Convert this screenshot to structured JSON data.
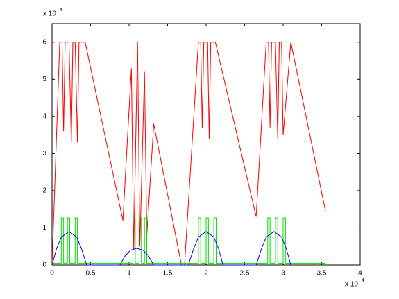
{
  "chart_data": {
    "type": "line",
    "xlim": [
      0,
      4
    ],
    "xticks": [
      0,
      0.5,
      1,
      1.5,
      2,
      2.5,
      3,
      3.5,
      4
    ],
    "ylim": [
      0,
      6.5
    ],
    "yticks": [
      0,
      1,
      2,
      3,
      4,
      5,
      6
    ],
    "x_multiplier": "x 10",
    "x_multiplier_exp": "4",
    "y_multiplier": "x 10",
    "y_multiplier_exp": "4",
    "series": [
      {
        "color": "#ff0000",
        "x": [
          0,
          0.1,
          0.13,
          0.15,
          0.17,
          0.22,
          0.25,
          0.27,
          0.3,
          0.33,
          0.35,
          0.43,
          0.92,
          1.03,
          1.06,
          1.11,
          1.14,
          1.2,
          1.23,
          1.32,
          1.68,
          1.72,
          1.9,
          1.93,
          1.95,
          1.97,
          2.02,
          2.04,
          2.06,
          2.12,
          2.65,
          2.78,
          2.81,
          2.83,
          2.85,
          2.9,
          2.93,
          2.95,
          2.98,
          3.0,
          3.1,
          3.55
        ],
        "values": [
          0,
          6,
          6,
          3.6,
          6,
          6,
          3.3,
          6,
          6,
          3.3,
          6,
          6,
          1.2,
          5.3,
          0.4,
          6,
          0.5,
          5.2,
          0.8,
          3.8,
          0,
          0,
          6,
          6,
          3.7,
          6,
          6,
          3.4,
          6,
          6,
          1.3,
          6,
          6,
          3.7,
          6,
          6,
          3.4,
          6,
          6,
          3.5,
          6,
          1.45
        ]
      },
      {
        "color": "#00dd00",
        "x": [
          0,
          0.12,
          0.12,
          0.15,
          0.15,
          0.2,
          0.2,
          0.23,
          0.23,
          0.3,
          0.3,
          0.33,
          0.33,
          1.05,
          1.05,
          1.08,
          1.08,
          1.13,
          1.13,
          1.16,
          1.16,
          1.2,
          1.2,
          1.23,
          1.23,
          1.9,
          1.9,
          1.93,
          1.93,
          2.0,
          2.0,
          2.03,
          2.03,
          2.1,
          2.1,
          2.13,
          2.13,
          2.8,
          2.8,
          2.83,
          2.83,
          2.9,
          2.9,
          2.93,
          2.93,
          3.0,
          3.0,
          3.03,
          3.03,
          3.55
        ],
        "values": [
          0.05,
          0.05,
          1.27,
          1.27,
          0.05,
          0.05,
          1.27,
          1.27,
          0.05,
          0.05,
          1.27,
          1.27,
          0.05,
          0.05,
          1.27,
          1.27,
          0.05,
          0.05,
          1.27,
          1.27,
          0.05,
          0.05,
          1.27,
          1.27,
          0.05,
          0.05,
          1.27,
          1.27,
          0.05,
          0.05,
          1.27,
          1.27,
          0.05,
          0.05,
          1.27,
          1.27,
          0.05,
          0.05,
          1.27,
          1.27,
          0.05,
          0.05,
          1.27,
          1.27,
          0.05,
          0.05,
          1.27,
          1.27,
          0.05,
          0.05
        ]
      },
      {
        "color": "#0000ff",
        "x": [
          0,
          0.06,
          0.12,
          0.22,
          0.32,
          0.38,
          0.45,
          0.88,
          0.95,
          1.02,
          1.1,
          1.18,
          1.25,
          1.32,
          1.77,
          1.84,
          1.9,
          2.0,
          2.1,
          2.16,
          2.22,
          2.65,
          2.72,
          2.78,
          2.88,
          2.98,
          3.04,
          3.1
        ],
        "values": [
          0,
          0.45,
          0.75,
          0.9,
          0.75,
          0.45,
          0,
          0,
          0.25,
          0.4,
          0.45,
          0.4,
          0.25,
          0,
          0,
          0.45,
          0.75,
          0.9,
          0.75,
          0.45,
          0,
          0,
          0.45,
          0.75,
          0.9,
          0.75,
          0.45,
          0
        ]
      }
    ]
  }
}
